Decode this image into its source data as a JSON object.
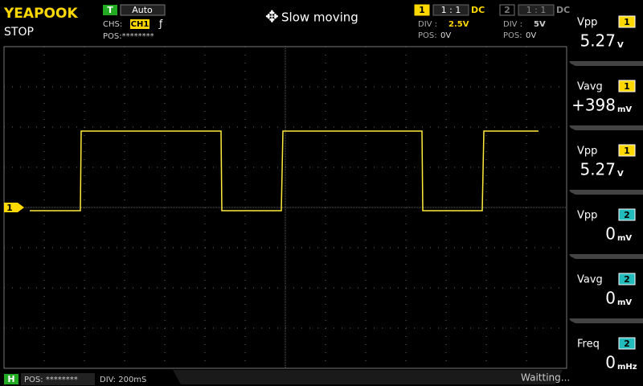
{
  "header": {
    "brand": "YEAPOOK",
    "status": "STOP",
    "trigger": {
      "tag": "T",
      "mode": "Auto",
      "source_label": "CHS:",
      "source": "CH1",
      "edge": "ƒ",
      "position": "POS:********"
    },
    "hint": "Slow moving",
    "channels": [
      {
        "number": "1",
        "probe": "1 : 1",
        "coupling": "DC",
        "div_label": "DIV :",
        "div": "2.5V",
        "pos_label": "POS:",
        "pos": "0V"
      },
      {
        "number": "2",
        "probe": "1 : 1",
        "coupling": "DC",
        "div_label": "DIV :",
        "div": "5V",
        "pos_label": "POS:",
        "pos": "0V"
      }
    ]
  },
  "marker": "1",
  "measurements": [
    {
      "name": "Vpp",
      "channel": "1",
      "value": "5.27",
      "unit": "V"
    },
    {
      "name": "Vavg",
      "channel": "1",
      "value": "+398",
      "unit": "mV"
    },
    {
      "name": "Vpp",
      "channel": "1",
      "value": "5.27",
      "unit": "V"
    },
    {
      "name": "Vpp",
      "channel": "2",
      "value": "0",
      "unit": "mV"
    },
    {
      "name": "Vavg",
      "channel": "2",
      "value": "0",
      "unit": "mV"
    },
    {
      "name": "Freq",
      "channel": "2",
      "value": "0",
      "unit": "mHz"
    }
  ],
  "footer": {
    "tag": "H",
    "position": "POS: ********",
    "timebase": "DIV: 200mS",
    "status": "Waitting..."
  }
}
